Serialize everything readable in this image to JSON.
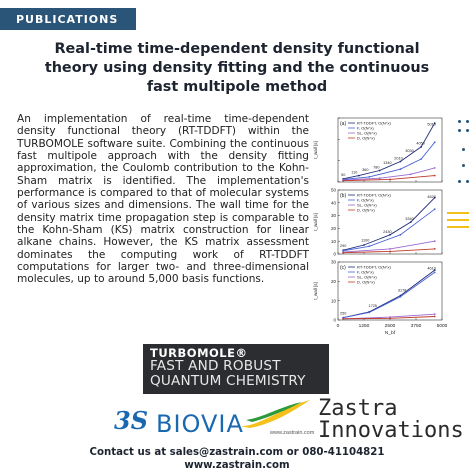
{
  "badge": "PUBLICATIONS",
  "title_lines": [
    "Real-time time-dependent density functional",
    "theory using density fitting and the continuous",
    "fast multipole method"
  ],
  "abstract": "An implementation of real-time time-dependent density functional theory (RT-TDDFT) within the TURBOMOLE software suite. Combining the continuous fast multipole approach with the density fitting approximation, the Coulomb contribution to the Kohn-Sham matrix is identified. The implementation's performance is compared to that of molecular systems of various sizes and dimensions. The wall time for the density matrix time propagation step is comparable to the Kohn-Sham (KS) matrix construction for linear alkane chains. However, the KS matrix assessment dominates the computing work of RT-TDDFT computations for larger two- and three-dimensional molecules, up to around 5,000 basis functions.",
  "figure": {
    "panel_labels": [
      "(a)",
      "(b)",
      "(c)"
    ],
    "ylabel": "t_wall [s]",
    "xlabel": "N_bf",
    "x_ticks": [
      "0",
      "1250",
      "2500",
      "3750",
      "5000"
    ],
    "panels": [
      {
        "y_ticks": [
          "",
          "",
          "",
          ""
        ],
        "legend": [
          "RT-TDDFT, O(N^x)",
          "F, O(N^x)",
          "SL, O(N^x)",
          "D, O(N^x)"
        ],
        "annotations": [
          "50",
          "110",
          "360",
          "780",
          "1340",
          "2010",
          "3030",
          "4050",
          "5010"
        ]
      },
      {
        "y_ticks": [
          "0",
          "10",
          "20",
          "30",
          "40",
          "50"
        ],
        "legend": [
          "RT-TDDFT, O(N^x)",
          "F, O(N^x)",
          "SL, O(N^x)",
          "D, O(N^x)"
        ],
        "annotations": [
          "290",
          "1100",
          "2430",
          "3340",
          "4620"
        ]
      },
      {
        "y_ticks": [
          "0",
          "10",
          "20",
          "30"
        ],
        "legend": [
          "RT-TDDFT, O(N^x)",
          "F, O(N^x)",
          "SL, O(N^x)",
          "D, O(N^x)"
        ],
        "annotations": [
          "250",
          "1725",
          "3178",
          "4610"
        ]
      }
    ],
    "series_colors": [
      "#1f2b7a",
      "#4a63d8",
      "#9a6ad0",
      "#c0392b"
    ]
  },
  "turbomole": {
    "brand": "TURBOMOLE®",
    "tag_lines": [
      "FAST AND ROBUST",
      "QUANTUM CHEMISTRY"
    ]
  },
  "biovia": {
    "mark": "3S",
    "word": "BIOVIA"
  },
  "zastra": {
    "name_lines": [
      "Zastra",
      "Innovations"
    ],
    "url": "www.zastrain.com"
  },
  "footer": {
    "line1": "Contact us at sales@zastrain.com or 080-41104821",
    "line2": "www.zastrain.com"
  },
  "colors": {
    "badge": "#2b5578",
    "accent": "#f3c11a",
    "biovia": "#1a69b0",
    "turbo_bg": "#2c2d30"
  }
}
